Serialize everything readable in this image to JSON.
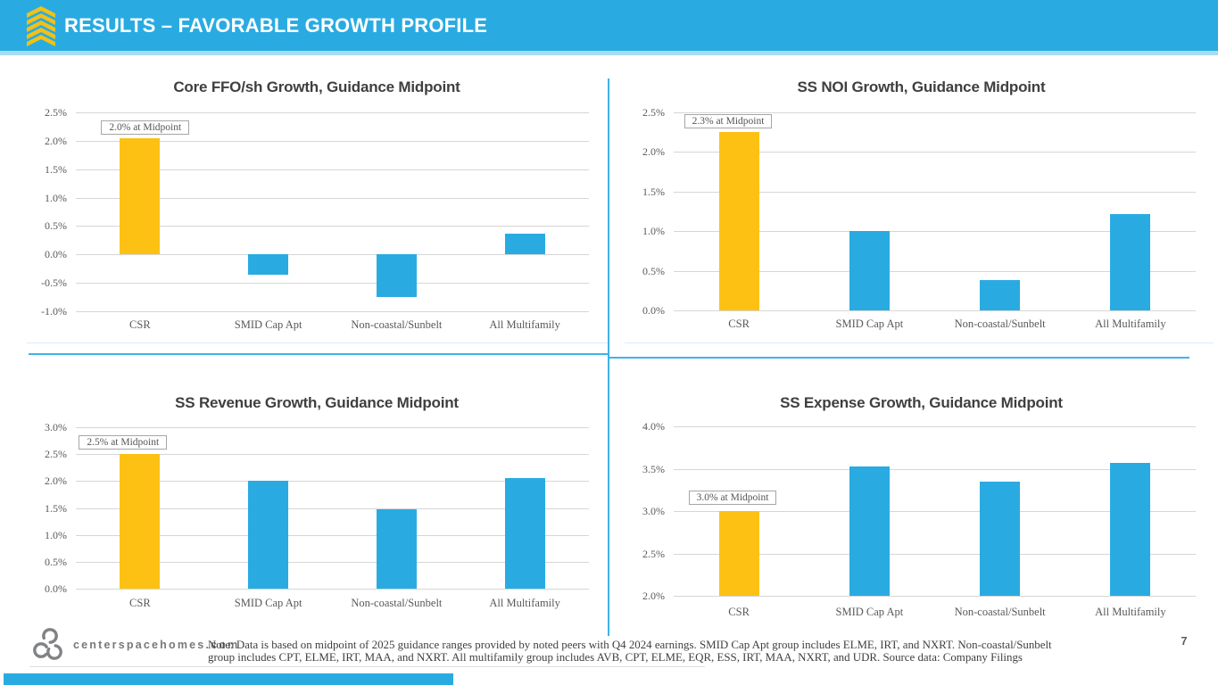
{
  "header": {
    "title": "RESULTS – FAVORABLE GROWTH PROFILE",
    "bg_color": "#29abe2",
    "icon": "chevron-stack-icon",
    "icon_color": "#f2c117"
  },
  "chart_data": [
    {
      "type": "bar",
      "title": "Core FFO/sh Growth, Guidance Midpoint",
      "callout": "2.0% at Midpoint",
      "categories": [
        "CSR",
        "SMID Cap Apt",
        "Non-coastal/Sunbelt",
        "All Multifamily"
      ],
      "values": [
        2.05,
        -0.35,
        -0.75,
        0.37
      ],
      "ylim": [
        -1.0,
        2.5
      ],
      "ystep": 0.5,
      "tick_format": "percent_one_decimal",
      "grid": true,
      "highlight_index": 0
    },
    {
      "type": "bar",
      "title": "SS NOI Growth, Guidance Midpoint",
      "callout": "2.3% at Midpoint",
      "categories": [
        "CSR",
        "SMID Cap Apt",
        "Non-coastal/Sunbelt",
        "All Multifamily"
      ],
      "values": [
        2.25,
        1.0,
        0.38,
        1.22
      ],
      "ylim": [
        0.0,
        2.5
      ],
      "ystep": 0.5,
      "tick_format": "percent_one_decimal",
      "grid": true,
      "highlight_index": 0
    },
    {
      "type": "bar",
      "title": "SS Revenue Growth, Guidance Midpoint",
      "callout": "2.5% at Midpoint",
      "categories": [
        "CSR",
        "SMID Cap Apt",
        "Non-coastal/Sunbelt",
        "All Multifamily"
      ],
      "values": [
        2.5,
        2.0,
        1.48,
        2.05
      ],
      "ylim": [
        0.0,
        3.0
      ],
      "ystep": 0.5,
      "tick_format": "percent_one_decimal",
      "grid": true,
      "highlight_index": 0
    },
    {
      "type": "bar",
      "title": "SS Expense Growth, Guidance Midpoint",
      "callout": "3.0% at Midpoint",
      "categories": [
        "CSR",
        "SMID Cap Apt",
        "Non-coastal/Sunbelt",
        "All Multifamily"
      ],
      "values": [
        3.0,
        3.53,
        3.35,
        3.57
      ],
      "ylim": [
        2.0,
        4.0
      ],
      "ystep": 0.5,
      "tick_format": "percent_one_decimal",
      "grid": true,
      "highlight_index": 0
    }
  ],
  "colors": {
    "csr_bar": "#fdc113",
    "peer_bar": "#29abe2",
    "gridline": "#d6d6d6",
    "divider": "#3cb4e7"
  },
  "footer": {
    "logo": "centerspace-trefoil-logo",
    "website": "centerspacehomes.com",
    "note": "Note: Data is based on midpoint of 2025 guidance ranges provided by noted peers with Q4 2024 earnings. SMID Cap Apt group includes ELME, IRT, and NXRT. Non-coastal/Sunbelt group includes CPT, ELME, IRT, MAA, and NXRT. All multifamily group includes AVB, CPT, ELME, EQR, ESS, IRT, MAA, NXRT, and UDR. Source data: Company Filings",
    "page_number": "7"
  }
}
